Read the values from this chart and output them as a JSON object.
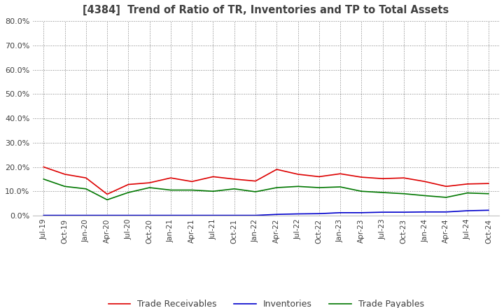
{
  "title": "[4384]  Trend of Ratio of TR, Inventories and TP to Total Assets",
  "title_color": "#404040",
  "background_color": "#ffffff",
  "grid_color": "#808080",
  "ylim": [
    0.0,
    0.8
  ],
  "yticks": [
    0.0,
    0.1,
    0.2,
    0.3,
    0.4,
    0.5,
    0.6,
    0.7,
    0.8
  ],
  "x_labels": [
    "Jul-19",
    "Oct-19",
    "Jan-20",
    "Apr-20",
    "Jul-20",
    "Oct-20",
    "Jan-21",
    "Apr-21",
    "Jul-21",
    "Oct-21",
    "Jan-22",
    "Apr-22",
    "Jul-22",
    "Oct-22",
    "Jan-23",
    "Apr-23",
    "Jul-23",
    "Oct-23",
    "Jan-24",
    "Apr-24",
    "Jul-24",
    "Oct-24"
  ],
  "trade_receivables": [
    0.2,
    0.17,
    0.155,
    0.088,
    0.128,
    0.135,
    0.155,
    0.14,
    0.16,
    0.15,
    0.142,
    0.19,
    0.17,
    0.16,
    0.172,
    0.158,
    0.152,
    0.155,
    0.14,
    0.12,
    0.13,
    0.132
  ],
  "inventories": [
    0.001,
    0.001,
    0.001,
    0.001,
    0.001,
    0.001,
    0.001,
    0.001,
    0.001,
    0.001,
    0.001,
    0.005,
    0.007,
    0.008,
    0.012,
    0.012,
    0.014,
    0.014,
    0.015,
    0.015,
    0.02,
    0.022
  ],
  "trade_payables": [
    0.15,
    0.12,
    0.11,
    0.065,
    0.095,
    0.115,
    0.105,
    0.105,
    0.1,
    0.11,
    0.098,
    0.115,
    0.12,
    0.115,
    0.118,
    0.1,
    0.095,
    0.09,
    0.082,
    0.075,
    0.093,
    0.09
  ],
  "tr_color": "#dd0000",
  "inv_color": "#0000cc",
  "tp_color": "#007700",
  "legend_labels": [
    "Trade Receivables",
    "Inventories",
    "Trade Payables"
  ]
}
